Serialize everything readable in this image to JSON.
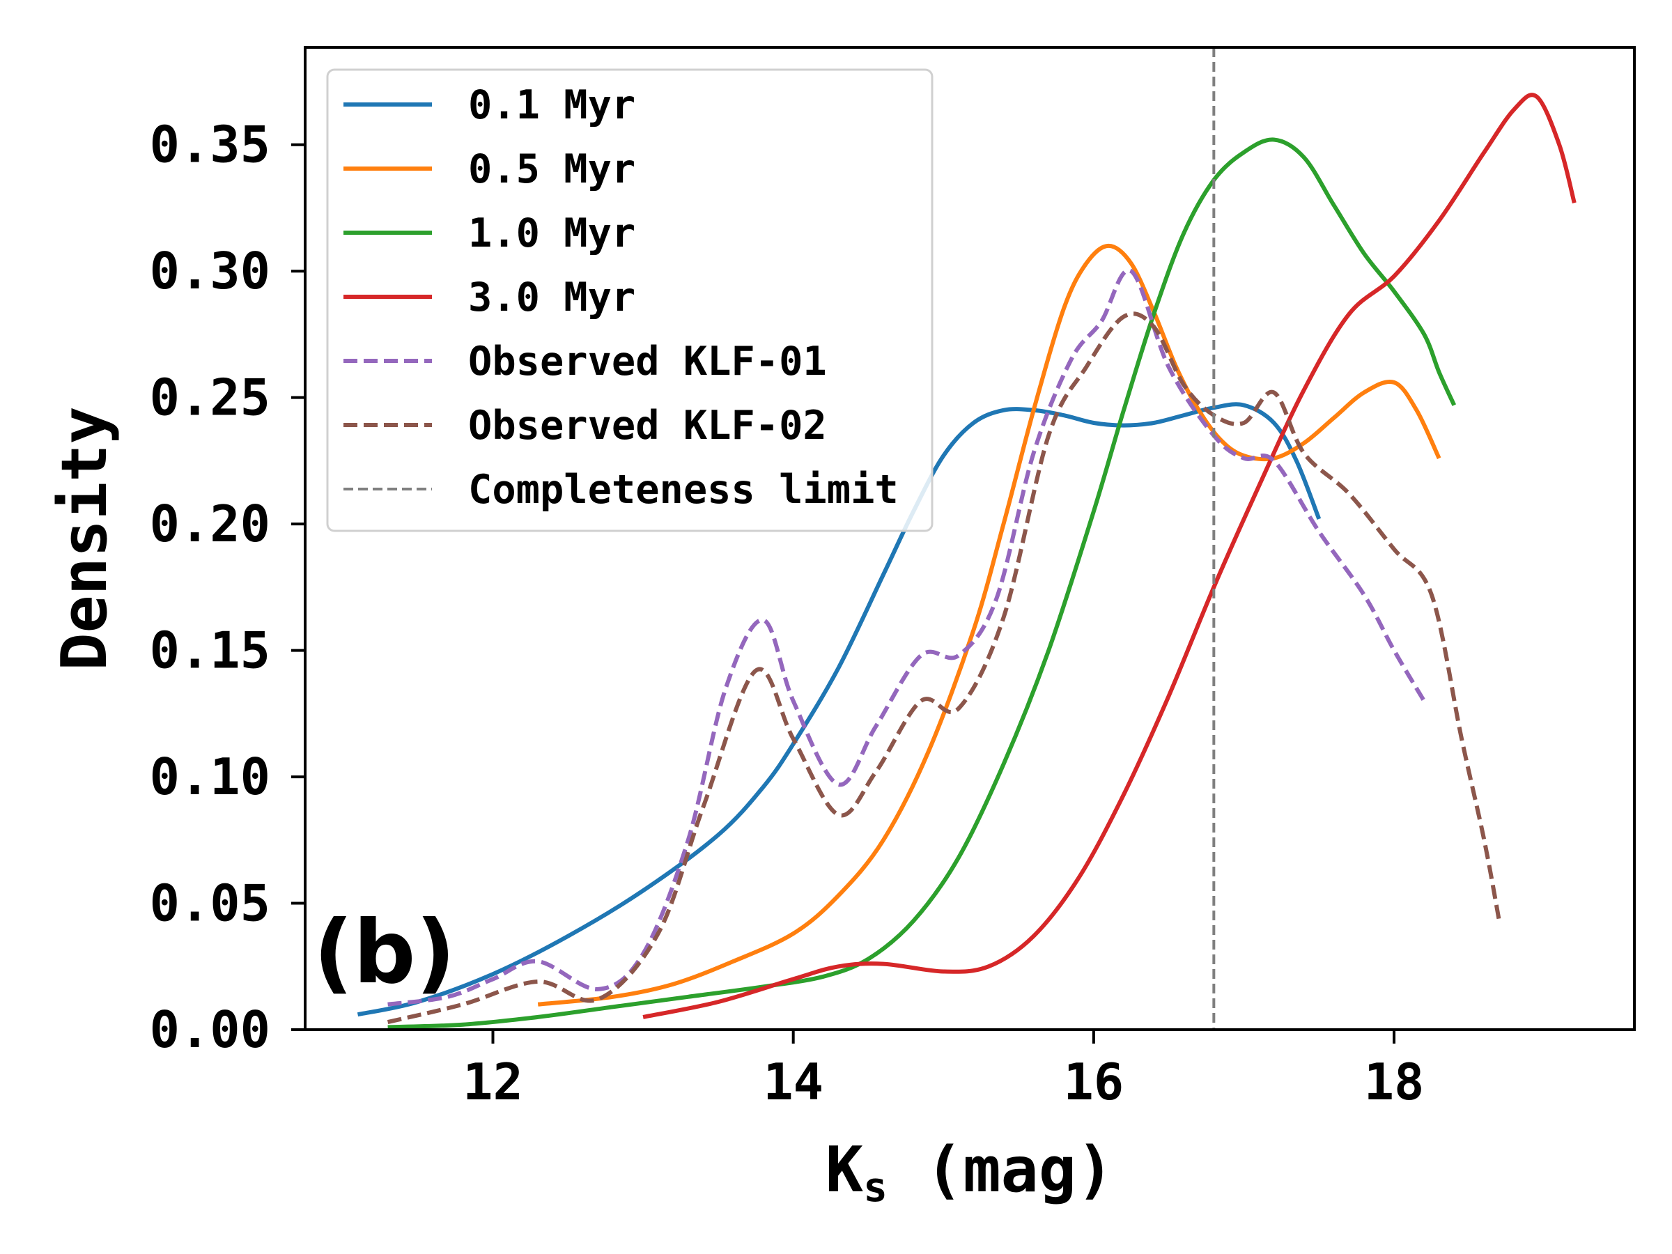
{
  "chart_data": {
    "type": "line",
    "title": "",
    "panel_label": "(b)",
    "xlabel_main": "K",
    "xlabel_sub": "s",
    "xlabel_rest": " (mag)",
    "ylabel": "Density",
    "xlim": [
      10.75,
      19.6
    ],
    "ylim": [
      0.0,
      0.3885
    ],
    "xticks": [
      12,
      14,
      16,
      18
    ],
    "xtick_labels": [
      "12",
      "14",
      "16",
      "18"
    ],
    "yticks": [
      0.0,
      0.05,
      0.1,
      0.15,
      0.2,
      0.25,
      0.3,
      0.35
    ],
    "ytick_labels": [
      "0.00",
      "0.05",
      "0.10",
      "0.15",
      "0.20",
      "0.25",
      "0.30",
      "0.35"
    ],
    "grid": false,
    "legend_position": "upper-left",
    "completeness_limit": {
      "x": 16.8,
      "label": "Completeness limit",
      "color": "#7f7f7f"
    },
    "series": [
      {
        "name": "0.1 Myr",
        "color": "#1f77b4",
        "dash": false,
        "x": [
          11.1,
          11.5,
          12.0,
          12.5,
          13.0,
          13.5,
          13.8,
          14.0,
          14.3,
          14.6,
          14.8,
          15.0,
          15.2,
          15.4,
          15.6,
          15.8,
          16.0,
          16.2,
          16.4,
          16.6,
          16.8,
          17.0,
          17.2,
          17.35,
          17.5
        ],
        "y": [
          0.006,
          0.011,
          0.022,
          0.037,
          0.055,
          0.077,
          0.096,
          0.113,
          0.143,
          0.18,
          0.205,
          0.227,
          0.24,
          0.245,
          0.245,
          0.243,
          0.24,
          0.239,
          0.24,
          0.243,
          0.246,
          0.247,
          0.24,
          0.225,
          0.202
        ]
      },
      {
        "name": "0.5 Myr",
        "color": "#ff7f0e",
        "dash": false,
        "x": [
          12.3,
          12.8,
          13.2,
          13.6,
          14.0,
          14.3,
          14.6,
          14.9,
          15.2,
          15.4,
          15.6,
          15.8,
          15.95,
          16.1,
          16.25,
          16.4,
          16.55,
          16.7,
          16.85,
          17.0,
          17.2,
          17.4,
          17.6,
          17.8,
          18.0,
          18.15,
          18.3
        ],
        "y": [
          0.01,
          0.013,
          0.018,
          0.027,
          0.038,
          0.053,
          0.075,
          0.11,
          0.158,
          0.2,
          0.245,
          0.285,
          0.303,
          0.31,
          0.303,
          0.284,
          0.262,
          0.245,
          0.233,
          0.227,
          0.226,
          0.232,
          0.242,
          0.252,
          0.256,
          0.245,
          0.226
        ]
      },
      {
        "name": "1.0 Myr",
        "color": "#2ca02c",
        "dash": false,
        "x": [
          11.3,
          11.8,
          12.3,
          12.8,
          13.3,
          13.8,
          14.2,
          14.5,
          14.8,
          15.1,
          15.4,
          15.7,
          16.0,
          16.2,
          16.4,
          16.6,
          16.8,
          17.0,
          17.2,
          17.4,
          17.6,
          17.8,
          18.0,
          18.2,
          18.3,
          18.4
        ],
        "y": [
          0.001,
          0.002,
          0.005,
          0.009,
          0.013,
          0.017,
          0.021,
          0.028,
          0.043,
          0.068,
          0.105,
          0.15,
          0.205,
          0.245,
          0.283,
          0.315,
          0.336,
          0.347,
          0.352,
          0.345,
          0.326,
          0.307,
          0.292,
          0.275,
          0.26,
          0.247
        ]
      },
      {
        "name": "3.0 Myr",
        "color": "#d62728",
        "dash": false,
        "x": [
          13.0,
          13.5,
          14.0,
          14.3,
          14.6,
          15.0,
          15.3,
          15.6,
          15.9,
          16.2,
          16.5,
          16.8,
          17.1,
          17.4,
          17.7,
          18.0,
          18.3,
          18.6,
          18.8,
          18.95,
          19.1,
          19.2
        ],
        "y": [
          0.005,
          0.011,
          0.02,
          0.025,
          0.026,
          0.023,
          0.025,
          0.037,
          0.06,
          0.093,
          0.132,
          0.175,
          0.215,
          0.253,
          0.283,
          0.298,
          0.32,
          0.347,
          0.364,
          0.369,
          0.35,
          0.327
        ]
      },
      {
        "name": "Observed KLF-01",
        "color": "#9467bd",
        "dash": true,
        "x": [
          11.3,
          11.7,
          12.0,
          12.3,
          12.7,
          13.0,
          13.3,
          13.55,
          13.8,
          14.0,
          14.3,
          14.55,
          14.85,
          15.1,
          15.35,
          15.6,
          15.85,
          16.05,
          16.25,
          16.5,
          16.8,
          17.0,
          17.2,
          17.5,
          17.8,
          18.0,
          18.2
        ],
        "y": [
          0.01,
          0.013,
          0.02,
          0.027,
          0.016,
          0.03,
          0.075,
          0.135,
          0.162,
          0.13,
          0.097,
          0.12,
          0.148,
          0.148,
          0.17,
          0.228,
          0.265,
          0.28,
          0.3,
          0.262,
          0.235,
          0.226,
          0.225,
          0.197,
          0.172,
          0.15,
          0.13
        ]
      },
      {
        "name": "Observed KLF-02",
        "color": "#8c564b",
        "dash": true,
        "x": [
          11.3,
          11.8,
          12.3,
          12.7,
          13.1,
          13.4,
          13.75,
          14.0,
          14.3,
          14.55,
          14.85,
          15.1,
          15.4,
          15.7,
          15.95,
          16.2,
          16.4,
          16.6,
          16.8,
          17.0,
          17.2,
          17.4,
          17.7,
          18.0,
          18.25,
          18.45,
          18.6,
          18.7
        ],
        "y": [
          0.003,
          0.01,
          0.019,
          0.012,
          0.038,
          0.088,
          0.142,
          0.115,
          0.085,
          0.102,
          0.13,
          0.127,
          0.163,
          0.235,
          0.262,
          0.282,
          0.278,
          0.255,
          0.243,
          0.24,
          0.252,
          0.228,
          0.212,
          0.19,
          0.172,
          0.115,
          0.075,
          0.043
        ]
      }
    ]
  }
}
